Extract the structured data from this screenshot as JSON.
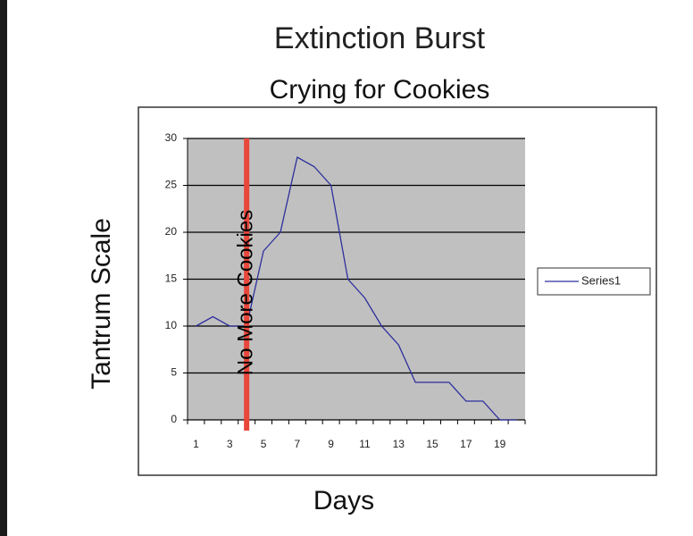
{
  "chart_data": {
    "type": "line",
    "title": "Extinction Burst",
    "subtitle": "Crying for Cookies",
    "x_label": "Days",
    "y_label": "Tantrum Scale",
    "categories": [
      "1",
      null,
      "3",
      null,
      "5",
      null,
      "7",
      null,
      "9",
      null,
      "11",
      null,
      "13",
      null,
      "15",
      null,
      "17",
      null,
      "19",
      null
    ],
    "series": [
      {
        "name": "Series1",
        "color": "#2e2e9e",
        "values": [
          10,
          11,
          10,
          10,
          18,
          20,
          28,
          27,
          25,
          15,
          13,
          10,
          8,
          4,
          4,
          4,
          2,
          2,
          0,
          0
        ]
      }
    ],
    "ylim": [
      0,
      30
    ],
    "yticks": [
      0,
      5,
      10,
      15,
      20,
      25,
      30
    ],
    "grid": true,
    "event_line": {
      "label": "No More Cookies",
      "x": 3.5,
      "color": "#e8473a"
    },
    "legend": "right"
  }
}
